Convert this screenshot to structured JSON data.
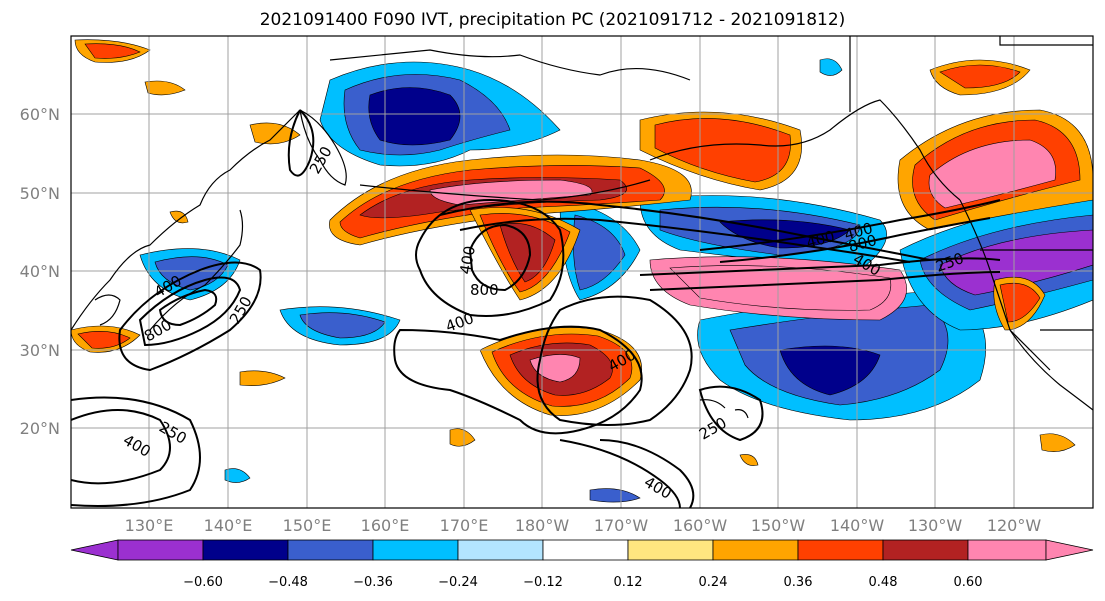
{
  "title": "2021091400 F090 IVT, precipitation PC (2021091712 - 2021091812)",
  "lat_labels": [
    "20°N",
    "30°N",
    "40°N",
    "50°N",
    "60°N"
  ],
  "lon_labels": [
    "130°E",
    "140°E",
    "150°E",
    "160°E",
    "170°E",
    "180°W",
    "170°W",
    "160°W",
    "150°W",
    "140°W",
    "130°W",
    "120°W"
  ],
  "colorbar": {
    "ticks": [
      "−0.60",
      "−0.48",
      "−0.36",
      "−0.24",
      "−0.12",
      "0.12",
      "0.24",
      "0.36",
      "0.48",
      "0.60"
    ],
    "colors": [
      "#9b30d0",
      "#00008b",
      "#3a5fcd",
      "#00bfff",
      "#b3e5ff",
      "#ffffff",
      "#ffe680",
      "#ffa500",
      "#ff4000",
      "#b22222",
      "#ff85b0"
    ]
  },
  "contour_labels": [
    "250",
    "400",
    "800",
    "250",
    "400",
    "250",
    "400",
    "800",
    "400",
    "400",
    "800",
    "400",
    "250",
    "250",
    "400",
    "400",
    "400"
  ],
  "colors": {
    "pink": "#ff85b0",
    "darkred": "#b22222",
    "red": "#ff4000",
    "orange": "#ffa500",
    "yellow": "#ffe680",
    "lightblue": "#b3e5ff",
    "cyan": "#00bfff",
    "blue": "#3a5fcd",
    "navy": "#00008b",
    "purple": "#9b30d0"
  }
}
